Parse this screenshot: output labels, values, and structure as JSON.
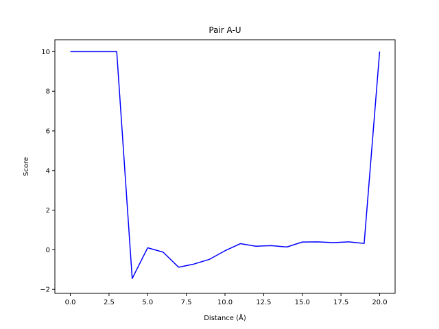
{
  "chart_data": {
    "type": "line",
    "title": "Pair A-U",
    "xlabel": "Distance (Å)",
    "ylabel": "Score",
    "xlim": [
      -1.0,
      21.0
    ],
    "ylim": [
      -2.2,
      10.6
    ],
    "x_ticks": [
      0.0,
      2.5,
      5.0,
      7.5,
      10.0,
      12.5,
      15.0,
      17.5,
      20.0
    ],
    "x_tick_labels": [
      "0.0",
      "2.5",
      "5.0",
      "7.5",
      "10.0",
      "12.5",
      "15.0",
      "17.5",
      "20.0"
    ],
    "y_ticks": [
      -2,
      0,
      2,
      4,
      6,
      8,
      10
    ],
    "y_tick_labels": [
      "−2",
      "0",
      "2",
      "4",
      "6",
      "8",
      "10"
    ],
    "grid": false,
    "series": [
      {
        "color": "#0000ff",
        "x": [
          0,
          1,
          2,
          3,
          4,
          5,
          6,
          7,
          8,
          9,
          10,
          11,
          12,
          13,
          14,
          15,
          16,
          17,
          18,
          19,
          20
        ],
        "y": [
          10,
          10,
          10,
          10,
          -1.45,
          0.1,
          -0.12,
          -0.88,
          -0.72,
          -0.48,
          -0.05,
          0.31,
          0.18,
          0.21,
          0.14,
          0.39,
          0.4,
          0.36,
          0.4,
          0.32,
          10
        ]
      }
    ]
  }
}
